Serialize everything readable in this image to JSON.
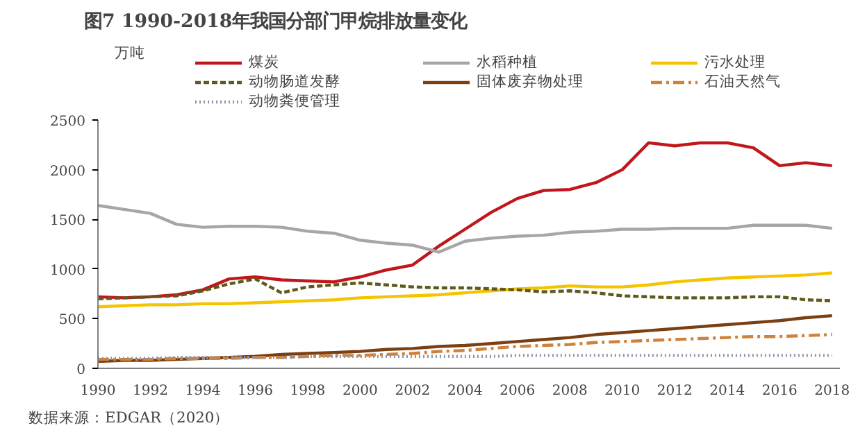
{
  "chart_data": {
    "type": "line",
    "title": "图7 1990-2018年我国分部门甲烷排放量变化",
    "ylabel": "万吨",
    "annotations": [
      "数据来源：EDGAR（2020）"
    ],
    "x": [
      1990,
      1991,
      1992,
      1993,
      1994,
      1995,
      1996,
      1997,
      1998,
      1999,
      2000,
      2001,
      2002,
      2003,
      2004,
      2005,
      2006,
      2007,
      2008,
      2009,
      2010,
      2011,
      2012,
      2013,
      2014,
      2015,
      2016,
      2017,
      2018
    ],
    "xlim": [
      1990,
      2018.3
    ],
    "xticks": [
      1990,
      1992,
      1994,
      1996,
      1998,
      2000,
      2002,
      2004,
      2006,
      2008,
      2010,
      2012,
      2014,
      2016,
      2018
    ],
    "ylim": [
      0,
      2500
    ],
    "yticks": [
      0,
      500,
      1000,
      1500,
      2000,
      2500
    ],
    "grid": false,
    "legend": "top",
    "marker": "none",
    "series": [
      {
        "name": "煤炭",
        "color": "#c0161c",
        "line_style": "solid",
        "values": [
          720,
          710,
          720,
          740,
          790,
          900,
          920,
          890,
          880,
          870,
          920,
          990,
          1040,
          1230,
          1400,
          1570,
          1710,
          1790,
          1800,
          1870,
          2000,
          2270,
          2240,
          2270,
          2270,
          2220,
          2040,
          2070,
          2040
        ]
      },
      {
        "name": "水稻种植",
        "color": "#a6a6a6",
        "line_style": "solid",
        "values": [
          1640,
          1600,
          1560,
          1450,
          1420,
          1430,
          1430,
          1420,
          1380,
          1360,
          1290,
          1260,
          1240,
          1170,
          1280,
          1310,
          1330,
          1340,
          1370,
          1380,
          1400,
          1400,
          1410,
          1410,
          1410,
          1440,
          1440,
          1440,
          1410
        ]
      },
      {
        "name": "污水处理",
        "color": "#f5c400",
        "line_style": "solid",
        "values": [
          620,
          630,
          640,
          640,
          650,
          650,
          660,
          670,
          680,
          690,
          710,
          720,
          730,
          740,
          760,
          780,
          800,
          810,
          830,
          820,
          820,
          840,
          870,
          890,
          910,
          920,
          930,
          940,
          960
        ]
      },
      {
        "name": "动物肠道发酵",
        "color": "#5e5a1c",
        "line_style": "dashed",
        "values": [
          700,
          710,
          720,
          730,
          780,
          850,
          900,
          760,
          820,
          840,
          860,
          840,
          820,
          810,
          810,
          800,
          790,
          770,
          780,
          760,
          730,
          720,
          710,
          710,
          710,
          720,
          720,
          690,
          680
        ]
      },
      {
        "name": "固体废弃物处理",
        "color": "#7b3f12",
        "line_style": "solid",
        "values": [
          70,
          80,
          80,
          90,
          100,
          110,
          120,
          140,
          150,
          160,
          170,
          190,
          200,
          220,
          230,
          250,
          270,
          290,
          310,
          340,
          360,
          380,
          400,
          420,
          440,
          460,
          480,
          510,
          530
        ]
      },
      {
        "name": "石油天然气",
        "color": "#d0813a",
        "line_style": "dashdot",
        "values": [
          90,
          90,
          90,
          100,
          100,
          100,
          110,
          110,
          120,
          130,
          130,
          140,
          150,
          170,
          180,
          200,
          220,
          230,
          240,
          260,
          270,
          280,
          290,
          300,
          310,
          320,
          320,
          330,
          340
        ]
      },
      {
        "name": "动物粪便管理",
        "color": "#8c96a8",
        "line_style": "dotted",
        "values": [
          100,
          100,
          100,
          110,
          110,
          110,
          110,
          110,
          120,
          120,
          120,
          120,
          120,
          120,
          120,
          120,
          130,
          130,
          130,
          130,
          130,
          130,
          130,
          130,
          130,
          130,
          130,
          130,
          130
        ]
      }
    ]
  }
}
